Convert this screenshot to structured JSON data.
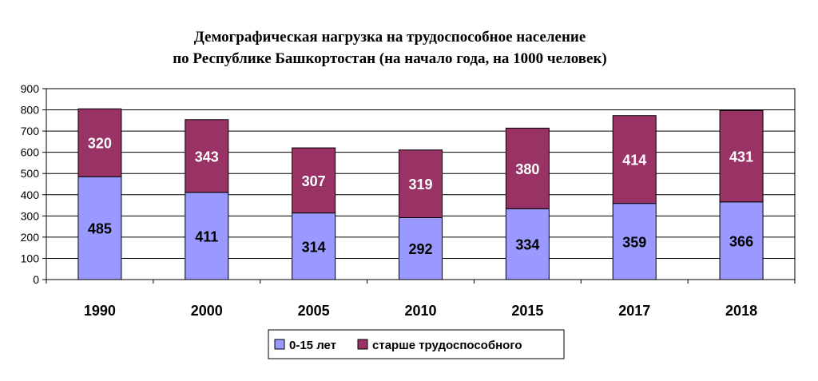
{
  "chart_data": {
    "type": "bar",
    "stacked": true,
    "title": [
      "Демографическая нагрузка на трудоспособное население",
      "по Республике Башкортостан (на начало года, на 1000 человек)"
    ],
    "categories": [
      "1990",
      "2000",
      "2005",
      "2010",
      "2015",
      "2017",
      "2018"
    ],
    "series": [
      {
        "name": "0-15 лет",
        "color": "#9999ff",
        "values": [
          485,
          411,
          314,
          292,
          334,
          359,
          366
        ]
      },
      {
        "name": "старше трудоспособного",
        "color": "#993366",
        "values": [
          320,
          343,
          307,
          319,
          380,
          414,
          431
        ]
      }
    ],
    "label_colors": [
      "#000000",
      "#ffffff"
    ],
    "ylim": [
      0,
      900
    ],
    "yticks": [
      0,
      100,
      200,
      300,
      400,
      500,
      600,
      700,
      800,
      900
    ],
    "grid": true,
    "legend": "bottom"
  }
}
